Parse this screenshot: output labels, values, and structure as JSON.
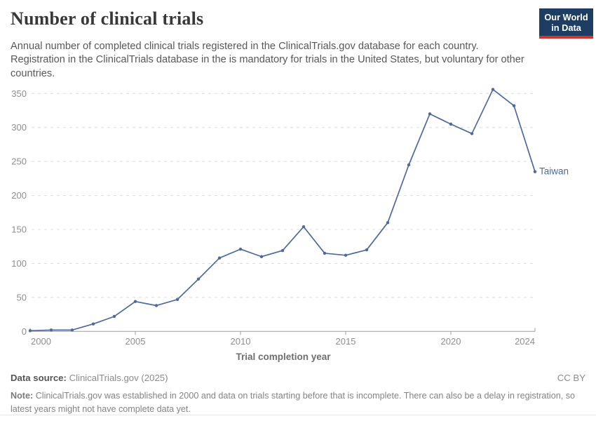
{
  "header": {
    "title": "Number of clinical trials",
    "subtitle": "Annual number of completed clinical trials registered in the ClinicalTrials.gov database for each country. Registration in the ClinicalTrials database in the is mandatory for trials in the United States, but voluntary for other countries.",
    "logo": {
      "line1": "Our World",
      "line2": "in Data",
      "bg_color": "#1d3d63",
      "accent_color": "#d0342c"
    }
  },
  "chart_data": {
    "type": "line",
    "title": "Number of clinical trials",
    "xlabel": "Trial completion year",
    "ylabel": "",
    "x": [
      2000,
      2001,
      2002,
      2003,
      2004,
      2005,
      2006,
      2007,
      2008,
      2009,
      2010,
      2011,
      2012,
      2013,
      2014,
      2015,
      2016,
      2017,
      2018,
      2019,
      2020,
      2021,
      2022,
      2023,
      2024
    ],
    "series": [
      {
        "name": "Taiwan",
        "color": "#4c6a9c",
        "values": [
          1,
          2,
          2,
          11,
          22,
          44,
          38,
          47,
          77,
          108,
          121,
          110,
          119,
          154,
          115,
          112,
          120,
          160,
          245,
          320,
          305,
          291,
          356,
          332,
          235
        ]
      }
    ],
    "ylim": [
      0,
      350
    ],
    "yticks": [
      0,
      50,
      100,
      150,
      200,
      250,
      300,
      350
    ],
    "xticks": [
      2000,
      2005,
      2010,
      2015,
      2020,
      2024
    ],
    "grid": "horizontal-dashed",
    "legend": "end-of-line-label",
    "colors": {
      "grid": "#dcdcdc",
      "axis": "#9e9e9e",
      "tick_text": "#8e8e8e",
      "axis_title_text": "#6f6f6f"
    }
  },
  "footer": {
    "source_label": "Data source:",
    "source_value": "ClinicalTrials.gov (2025)",
    "license": "CC BY",
    "note_label": "Note:",
    "note_text": "ClinicalTrials.gov was established in 2000 and data on trials starting before that is incomplete. There can also be a delay in registration, so latest years might not have complete data yet."
  }
}
